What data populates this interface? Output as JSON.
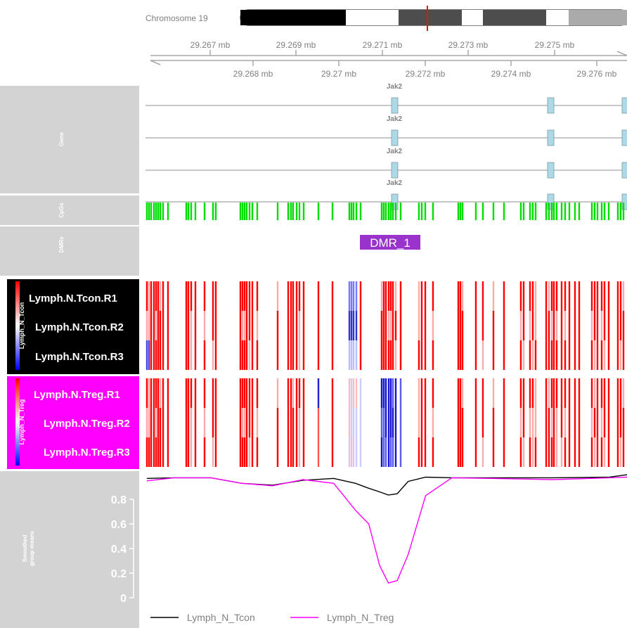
{
  "ideogram": {
    "label": "Chromosome 19",
    "bands": [
      {
        "w": 150,
        "color": "#000000"
      },
      {
        "w": 75,
        "color": "#ffffff"
      },
      {
        "w": 90,
        "color": "#4d4d4d"
      },
      {
        "w": 30,
        "color": "#ffffff"
      },
      {
        "w": 90,
        "color": "#4d4d4d"
      },
      {
        "w": 32,
        "color": "#ffffff"
      },
      {
        "w": 85,
        "color": "#aaaaaa"
      }
    ],
    "marker_color": "#d7191c"
  },
  "axis": {
    "top_ticks": [
      "29.267 mb",
      "29.269 mb",
      "29.271 mb",
      "29.273 mb",
      "29.275 mb"
    ],
    "bottom_ticks": [
      "29.268 mb",
      "29.27 mb",
      "29.272 mb",
      "29.274 mb",
      "29.276 mb"
    ]
  },
  "tracks": {
    "gene": {
      "title": "Gene",
      "transcripts": [
        {
          "label": "Jak2"
        },
        {
          "label": "Jak2"
        },
        {
          "label": "Jak2"
        },
        {
          "label": "Jak2"
        }
      ],
      "exon_color": "#add8e6"
    },
    "cpgs": {
      "title": "CpGs",
      "color": "#00dd00"
    },
    "dmrs": {
      "title": "DMRs",
      "label": "DMR_1",
      "color": "#9933cc"
    },
    "tcon": {
      "title": "Lymph_N_Tcon",
      "panel_color": "#000000",
      "samples": [
        "Lymph.N.Tcon.R1",
        "Lymph.N.Tcon.R2",
        "Lymph.N.Tcon.R3"
      ]
    },
    "treg": {
      "title": "Lymph_N_Treg",
      "panel_color": "#ff00ff",
      "samples": [
        "Lymph.N.Treg.R1",
        "Lymph.N.Treg.R2",
        "Lymph.N.Treg.R3"
      ]
    },
    "smoothed": {
      "title_line1": "Smoothed",
      "title_line2": "group means",
      "yticks": [
        "0",
        "0.2",
        "0.4",
        "0.6",
        "0.8"
      ]
    }
  },
  "chart_data": {
    "type": "line",
    "xlabel": "",
    "ylabel": "Smoothed group means",
    "xlim": [
      29.2662,
      29.2772
    ],
    "ylim": [
      0,
      1
    ],
    "x": [
      29.26623,
      29.26685,
      29.2677,
      29.2684,
      29.2691,
      29.2698,
      29.2705,
      29.271,
      29.2713,
      29.27155,
      29.27175,
      29.27195,
      29.2722,
      29.2726,
      29.2732,
      29.2741,
      29.2755,
      29.2768,
      29.2772
    ],
    "series": [
      {
        "name": "Lymph_N_Tcon",
        "color": "#000000",
        "values": [
          0.97,
          0.975,
          0.975,
          0.93,
          0.915,
          0.955,
          0.97,
          0.93,
          0.89,
          0.86,
          0.835,
          0.845,
          0.945,
          0.98,
          0.975,
          0.975,
          0.975,
          0.98,
          1.0
        ]
      },
      {
        "name": "Lymph_N_Treg",
        "color": "#ff00ff",
        "values": [
          0.95,
          0.975,
          0.975,
          0.93,
          0.91,
          0.96,
          0.93,
          0.71,
          0.6,
          0.26,
          0.12,
          0.14,
          0.35,
          0.83,
          0.975,
          0.97,
          0.96,
          0.975,
          0.98
        ]
      }
    ],
    "legend": [
      "Lymph_N_Tcon",
      "Lymph_N_Treg"
    ],
    "legend_position": "bottom"
  }
}
